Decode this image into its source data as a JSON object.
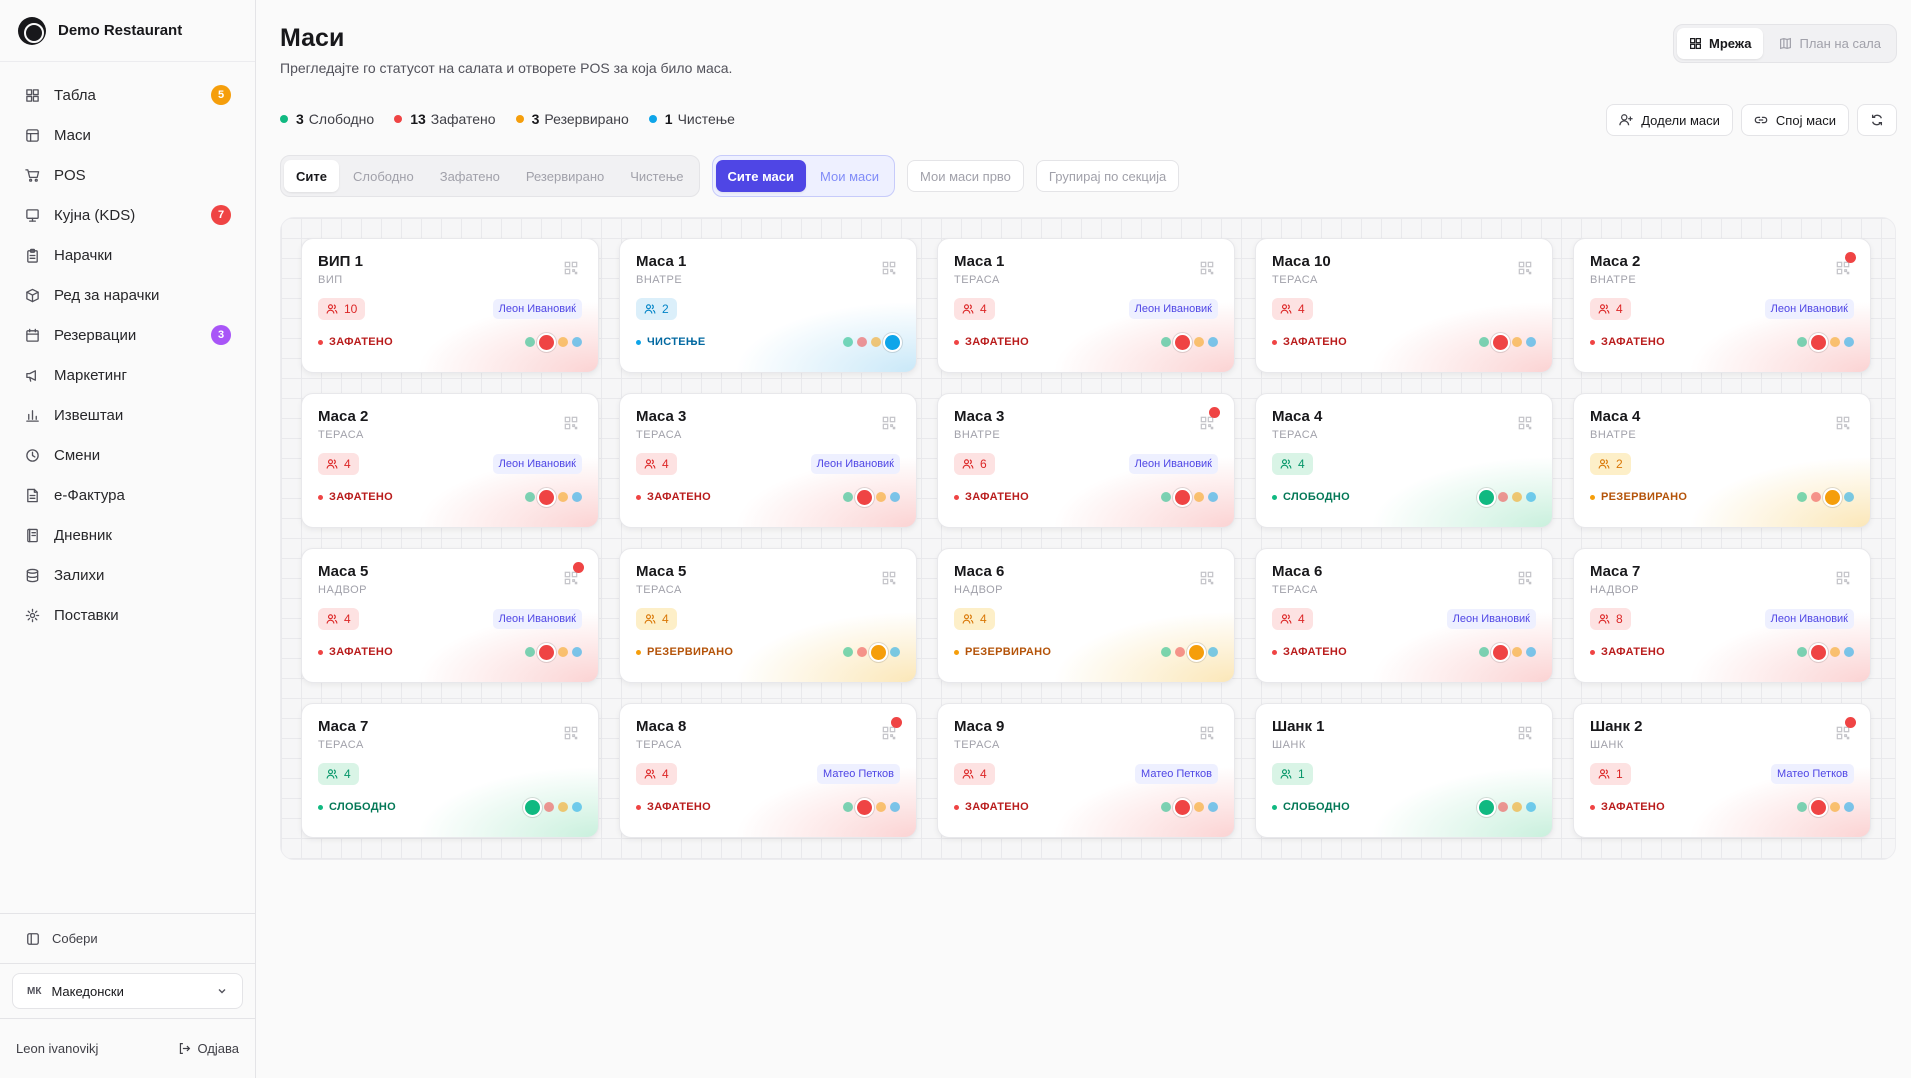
{
  "brand": {
    "name": "Demo Restaurant"
  },
  "nav": [
    {
      "key": "board",
      "label": "Табла",
      "icon": "grid-icon",
      "badge": "5",
      "badge_color": "#f59e0b"
    },
    {
      "key": "tables",
      "label": "Маси",
      "icon": "table-icon"
    },
    {
      "key": "pos",
      "label": "POS",
      "icon": "cart-icon"
    },
    {
      "key": "kds",
      "label": "Кујна (KDS)",
      "icon": "monitor-icon",
      "badge": "7",
      "badge_color": "#ef4444"
    },
    {
      "key": "orders",
      "label": "Нарачки",
      "icon": "clipboard-icon"
    },
    {
      "key": "queue",
      "label": "Ред за нарачки",
      "icon": "package-icon"
    },
    {
      "key": "reservations",
      "label": "Резервации",
      "icon": "calendar-icon",
      "badge": "3",
      "badge_color": "#a855f7"
    },
    {
      "key": "marketing",
      "label": "Маркетинг",
      "icon": "megaphone-icon"
    },
    {
      "key": "reports",
      "label": "Извештаи",
      "icon": "chart-icon"
    },
    {
      "key": "shifts",
      "label": "Смени",
      "icon": "clock-icon"
    },
    {
      "key": "einvoice",
      "label": "е-Фактура",
      "icon": "document-icon"
    },
    {
      "key": "journal",
      "label": "Дневник",
      "icon": "notebook-icon"
    },
    {
      "key": "stock",
      "label": "Залихи",
      "icon": "database-icon"
    },
    {
      "key": "settings",
      "label": "Поставки",
      "icon": "gear-icon"
    }
  ],
  "sidebar_footer": {
    "collapse_label": "Собери",
    "language": {
      "code": "МК",
      "name": "Македонски"
    },
    "user": "Leon ivanovikj",
    "logout": "Одјава"
  },
  "header": {
    "title": "Маси",
    "subtitle": "Прегледајте го статусот на салата и отворете POS за која било маса.",
    "view_grid": "Мрежа",
    "view_floor": "План на сала"
  },
  "stats": [
    {
      "count": "3",
      "label": "Слободно",
      "color": "#10b981"
    },
    {
      "count": "13",
      "label": "Зафатено",
      "color": "#ef4444"
    },
    {
      "count": "3",
      "label": "Резервирано",
      "color": "#f59e0b"
    },
    {
      "count": "1",
      "label": "Чистење",
      "color": "#0ea5e9"
    }
  ],
  "actions": {
    "assign": "Додели маси",
    "merge": "Спој маси"
  },
  "filters": {
    "status": [
      "Сите",
      "Слободно",
      "Зафатено",
      "Резервирано",
      "Чистење"
    ],
    "scope": [
      "Сите маси",
      "Мои маси"
    ],
    "my_first": "Мои маси прво",
    "group_by": "Групирај по секција"
  },
  "status_labels": {
    "free": "СЛОБОДНО",
    "occupied": "ЗАФАТЕНО",
    "reserved": "РЕЗЕРВИРАНО",
    "cleaning": "ЧИСТЕЊЕ"
  },
  "tables": [
    {
      "name": "ВИП 1",
      "section": "ВИП",
      "guests": "10",
      "waiter": "Леон Ивановиќ",
      "status": "occupied",
      "alert": false
    },
    {
      "name": "Маса 1",
      "section": "ВНАТРЕ",
      "guests": "2",
      "waiter": "",
      "status": "cleaning",
      "alert": false
    },
    {
      "name": "Маса 1",
      "section": "ТЕРАСА",
      "guests": "4",
      "waiter": "Леон Ивановиќ",
      "status": "occupied",
      "alert": false
    },
    {
      "name": "Маса 10",
      "section": "ТЕРАСА",
      "guests": "4",
      "waiter": "",
      "status": "occupied",
      "alert": false
    },
    {
      "name": "Маса 2",
      "section": "ВНАТРЕ",
      "guests": "4",
      "waiter": "Леон Ивановиќ",
      "status": "occupied",
      "alert": true
    },
    {
      "name": "Маса 2",
      "section": "ТЕРАСА",
      "guests": "4",
      "waiter": "Леон Ивановиќ",
      "status": "occupied",
      "alert": false
    },
    {
      "name": "Маса 3",
      "section": "ТЕРАСА",
      "guests": "4",
      "waiter": "Леон Ивановиќ",
      "status": "occupied",
      "alert": false
    },
    {
      "name": "Маса 3",
      "section": "ВНАТРЕ",
      "guests": "6",
      "waiter": "Леон Ивановиќ",
      "status": "occupied",
      "alert": true
    },
    {
      "name": "Маса 4",
      "section": "ТЕРАСА",
      "guests": "4",
      "waiter": "",
      "status": "free",
      "alert": false
    },
    {
      "name": "Маса 4",
      "section": "ВНАТРЕ",
      "guests": "2",
      "waiter": "",
      "status": "reserved",
      "alert": false
    },
    {
      "name": "Маса 5",
      "section": "НАДВОР",
      "guests": "4",
      "waiter": "Леон Ивановиќ",
      "status": "occupied",
      "alert": true
    },
    {
      "name": "Маса 5",
      "section": "ТЕРАСА",
      "guests": "4",
      "waiter": "",
      "status": "reserved",
      "alert": false
    },
    {
      "name": "Маса 6",
      "section": "НАДВОР",
      "guests": "4",
      "waiter": "",
      "status": "reserved",
      "alert": false
    },
    {
      "name": "Маса 6",
      "section": "ТЕРАСА",
      "guests": "4",
      "waiter": "Леон Ивановиќ",
      "status": "occupied",
      "alert": false
    },
    {
      "name": "Маса 7",
      "section": "НАДВОР",
      "guests": "8",
      "waiter": "Леон Ивановиќ",
      "status": "occupied",
      "alert": false
    },
    {
      "name": "Маса 7",
      "section": "ТЕРАСА",
      "guests": "4",
      "waiter": "",
      "status": "free",
      "alert": false
    },
    {
      "name": "Маса 8",
      "section": "ТЕРАСА",
      "guests": "4",
      "waiter": "Матео Петков",
      "status": "occupied",
      "alert": true
    },
    {
      "name": "Маса 9",
      "section": "ТЕРАСА",
      "guests": "4",
      "waiter": "Матео Петков",
      "status": "occupied",
      "alert": false
    },
    {
      "name": "Шанк 1",
      "section": "ШАНК",
      "guests": "1",
      "waiter": "",
      "status": "free",
      "alert": false
    },
    {
      "name": "Шанк 2",
      "section": "ШАНК",
      "guests": "1",
      "waiter": "Матео Петков",
      "status": "occupied",
      "alert": true
    }
  ]
}
